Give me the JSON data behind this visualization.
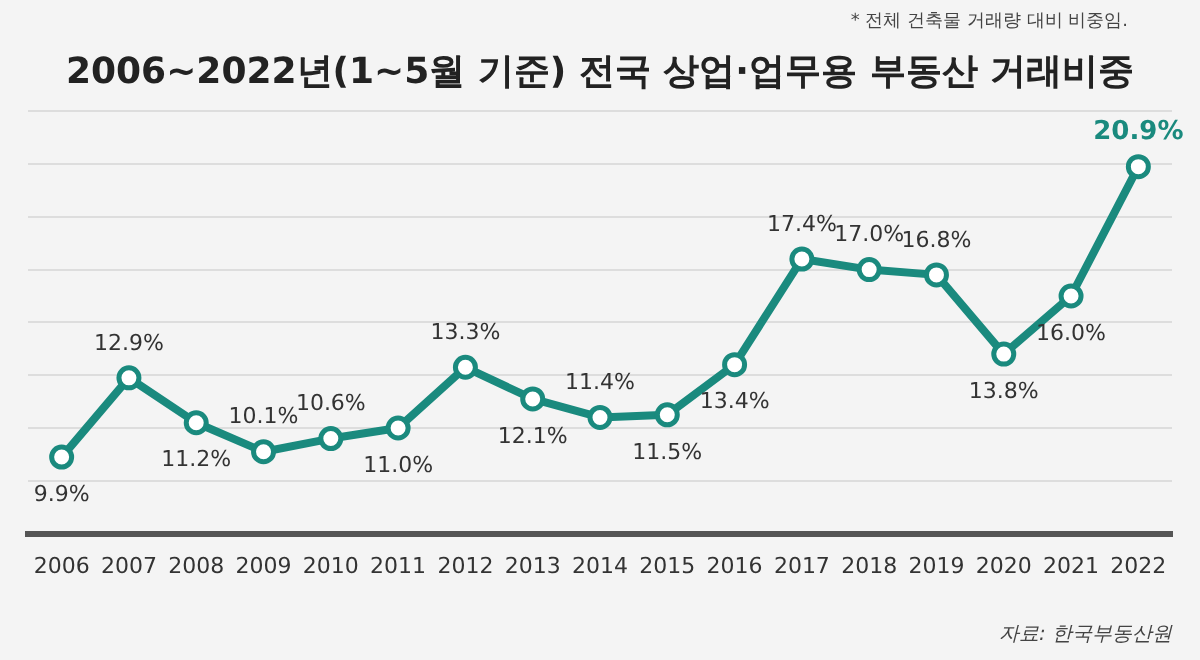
{
  "chart_data": {
    "type": "line",
    "title": "2006~2022년(1~5월 기준) 전국 상업·업무용 부동산 거래비중",
    "categories": [
      "2006",
      "2007",
      "2008",
      "2009",
      "2010",
      "2011",
      "2012",
      "2013",
      "2014",
      "2015",
      "2016",
      "2017",
      "2018",
      "2019",
      "2020",
      "2021",
      "2022"
    ],
    "series": [
      {
        "color": "#1a8a7e",
        "values": [
          9.9,
          12.9,
          11.2,
          10.1,
          10.6,
          11.0,
          13.3,
          12.1,
          11.4,
          11.5,
          13.4,
          17.4,
          17.0,
          16.8,
          13.8,
          16.0,
          20.9
        ],
        "value_labels": [
          "9.9%",
          "12.9%",
          "11.2%",
          "10.1%",
          "10.6%",
          "11.0%",
          "13.3%",
          "12.1%",
          "11.4%",
          "11.5%",
          "13.4%",
          "17.4%",
          "17.0%",
          "16.8%",
          "13.8%",
          "16.0%",
          "20.9%"
        ]
      }
    ],
    "ylim": [
      7,
      23
    ],
    "yticks": [
      {
        "value": 9,
        "label": null
      },
      {
        "value": 11,
        "label": null
      },
      {
        "value": 13,
        "label": null
      },
      {
        "value": 15,
        "label": null
      },
      {
        "value": 17,
        "label": null
      },
      {
        "value": 19,
        "label": null
      },
      {
        "value": 21,
        "label": null
      },
      {
        "value": 23,
        "label": null
      }
    ],
    "tick_labels": "x",
    "grid": "y",
    "legend": false,
    "marker": "circle",
    "line_style": "solid",
    "annotations": [
      "* 전체 건축물 거래량 대비 비중임.",
      "자료: 한국부동산원"
    ]
  }
}
